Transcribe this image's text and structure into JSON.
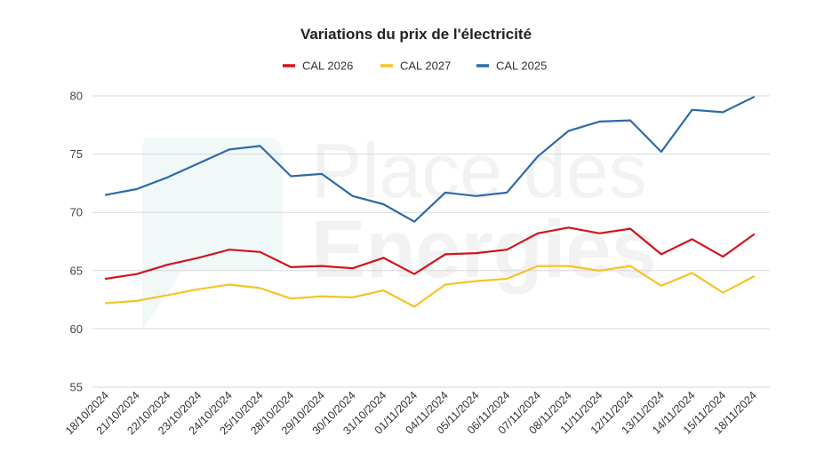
{
  "watermark": {
    "line1": "Place des",
    "line2": "Energies"
  },
  "chart_data": {
    "type": "line",
    "title": "Variations du prix de l'électricité",
    "xlabel": "",
    "ylabel": "",
    "ylim": [
      55,
      80
    ],
    "yticks": [
      55,
      60,
      65,
      70,
      75,
      80
    ],
    "grid": true,
    "legend_position": "top",
    "categories": [
      "18/10/2024",
      "21/10/2024",
      "22/10/2024",
      "23/10/2024",
      "24/10/2024",
      "25/10/2024",
      "28/10/2024",
      "29/10/2024",
      "30/10/2024",
      "31/10/2024",
      "01/11/2024",
      "04/11/2024",
      "05/11/2024",
      "06/11/2024",
      "07/11/2024",
      "08/11/2024",
      "11/11/2024",
      "12/11/2024",
      "13/11/2024",
      "14/11/2024",
      "15/11/2024",
      "18/11/2024"
    ],
    "series": [
      {
        "name": "CAL 2026",
        "color": "#d0141e",
        "values": [
          64.3,
          64.7,
          65.5,
          66.1,
          66.8,
          66.6,
          65.3,
          65.4,
          65.2,
          66.1,
          64.7,
          66.4,
          66.5,
          66.8,
          68.2,
          68.7,
          68.2,
          68.6,
          66.4,
          67.7,
          66.2,
          68.1
        ]
      },
      {
        "name": "CAL 2027",
        "color": "#f7c325",
        "values": [
          62.2,
          62.4,
          62.9,
          63.4,
          63.8,
          63.5,
          62.6,
          62.8,
          62.7,
          63.3,
          61.9,
          63.8,
          64.1,
          64.3,
          65.4,
          65.4,
          65.0,
          65.4,
          63.7,
          64.8,
          63.1,
          64.5
        ]
      },
      {
        "name": "CAL 2025",
        "color": "#2f6aa8",
        "values": [
          71.5,
          72.0,
          73.0,
          74.2,
          75.4,
          75.7,
          73.1,
          73.3,
          71.4,
          70.7,
          69.2,
          71.7,
          71.4,
          71.7,
          74.8,
          77.0,
          77.8,
          77.9,
          75.2,
          78.8,
          78.6,
          79.9
        ]
      }
    ]
  }
}
